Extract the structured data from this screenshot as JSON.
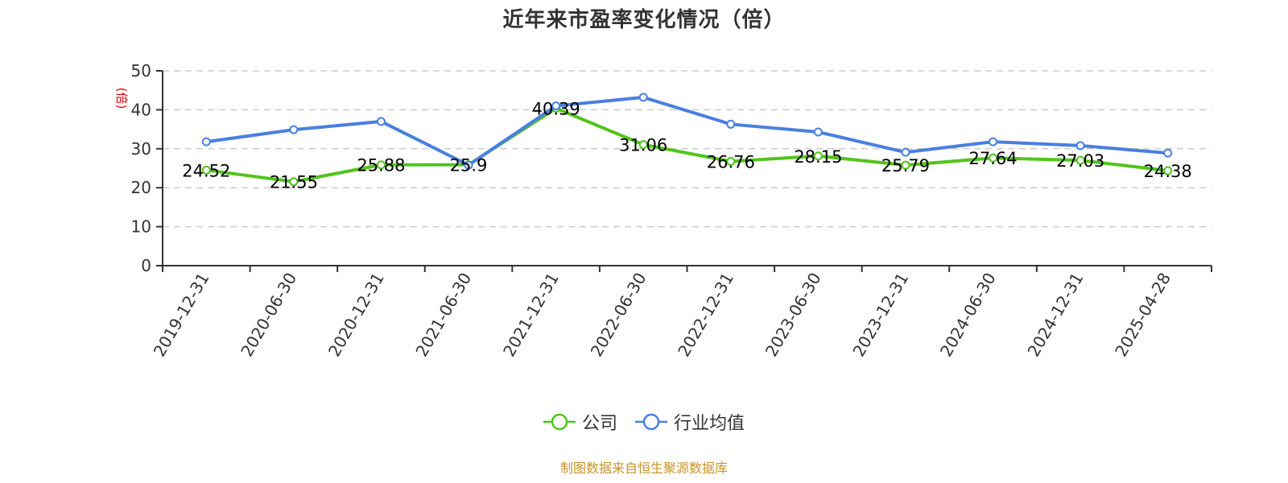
{
  "title": "近年来市盈率变化情况（倍）",
  "y_axis_label": "(倍)",
  "source_note": "制图数据来自恒生聚源数据库",
  "colors": {
    "company": "#52c41a",
    "industry": "#4a7fe0",
    "axis": "#333333",
    "grid": "#cccccc",
    "ylabel": "#e60000",
    "source": "#c8922a"
  },
  "legend": [
    {
      "name": "公司",
      "color": "#52c41a"
    },
    {
      "name": "行业均值",
      "color": "#4a7fe0"
    }
  ],
  "chart_data": {
    "type": "line",
    "title": "近年来市盈率变化情况（倍）",
    "xlabel": "",
    "ylabel": "(倍)",
    "ylim": [
      0,
      50
    ],
    "yticks": [
      0,
      10,
      20,
      30,
      40,
      50
    ],
    "grid": true,
    "legend_position": "bottom",
    "categories": [
      "2019-12-31",
      "2020-06-30",
      "2020-12-31",
      "2021-06-30",
      "2021-12-31",
      "2022-06-30",
      "2022-12-31",
      "2023-06-30",
      "2023-12-31",
      "2024-06-30",
      "2024-12-31",
      "2025-04-28"
    ],
    "series": [
      {
        "name": "公司",
        "color": "#52c41a",
        "show_labels": true,
        "values": [
          24.52,
          21.55,
          25.88,
          25.9,
          40.39,
          31.06,
          26.76,
          28.15,
          25.79,
          27.64,
          27.03,
          24.38
        ]
      },
      {
        "name": "行业均值",
        "color": "#4a7fe0",
        "show_labels": false,
        "values": [
          31.8,
          34.9,
          37.0,
          25.8,
          41.0,
          43.2,
          36.3,
          34.3,
          29.1,
          31.8,
          30.8,
          28.9
        ]
      }
    ]
  }
}
